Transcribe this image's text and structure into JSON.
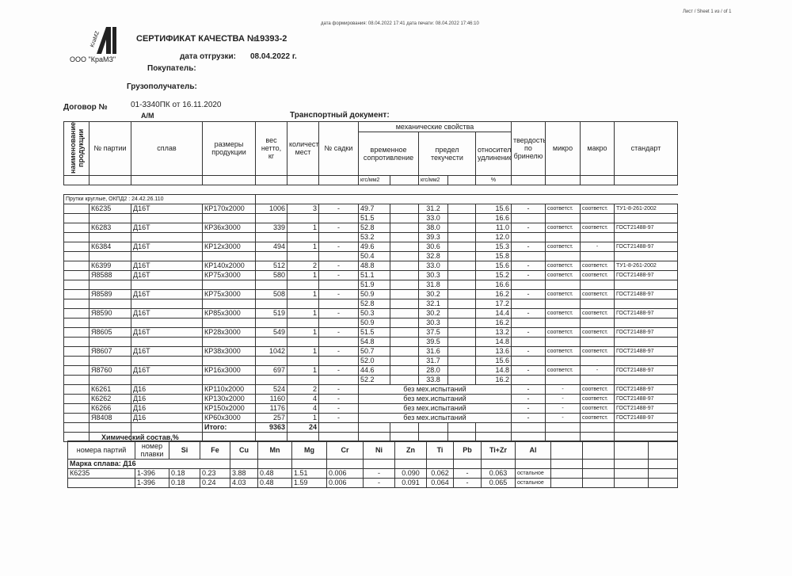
{
  "sheet": "Лист / Sheet   1 из / of  1",
  "dates": "дата формирования: 08.04.2022 17:41  дата печати: 08.04.2022 17:46:10",
  "company": "ООО \"КраМЗ\"",
  "logo_text": "KraMZ",
  "title_label": "СЕРТИФИКАТ КАЧЕСТВА №",
  "cert_no": "19393-2",
  "ship_label": "дата отгрузки:",
  "ship_date": "08.04.2022 г.",
  "buyer_label": "Покупатель:",
  "consignee_label": "Грузополучатель:",
  "contract_label": "Договор №",
  "contract_value": "01-3340ПК от 16.11.2020",
  "transport_mode": "А/М",
  "transport_doc_label": "Транспортный документ:",
  "main_table": {
    "headers": {
      "name": "наименование продукции",
      "lot": "№ партии",
      "alloy": "сплав",
      "size": "размеры продукции",
      "weight": "вес нетто, кг",
      "qty": "количество мест",
      "cage": "№ садки",
      "mech": "механические свойства",
      "tensile": "временное сопротивление",
      "yield": "предел текучести",
      "elong": "относительное удлинение",
      "hardness": "твердость по бринелю",
      "micro": "микро",
      "macro": "макро",
      "standard": "стандарт",
      "unit1": "кгс/мм2",
      "unit2": "кгс/мм2",
      "unit3": "%"
    },
    "group": "Прутки круглые,    ОКПД2 : 24.42.26.110",
    "rows": [
      {
        "lot": "К6235",
        "alloy": "Д16Т",
        "size": "КР170х2000",
        "weight": "1006",
        "qty": "3",
        "cage": "-",
        "t": [
          "49.7",
          "51.5"
        ],
        "y": [
          "31.2",
          "33.0"
        ],
        "e": [
          "15.6",
          "16.6"
        ],
        "hb": "-",
        "micro": "соответст.",
        "macro": "соответст.",
        "std": "ТУ1-8-261-2002"
      },
      {
        "lot": "К6283",
        "alloy": "Д16Т",
        "size": "КР36х3000",
        "weight": "339",
        "qty": "1",
        "cage": "-",
        "t": [
          "52.8",
          "53.2"
        ],
        "y": [
          "38.0",
          "39.3"
        ],
        "e": [
          "11.0",
          "12.0"
        ],
        "hb": "-",
        "micro": "соответст.",
        "macro": "соответст.",
        "std": "ГОСТ21488-97"
      },
      {
        "lot": "К6384",
        "alloy": "Д16Т",
        "size": "КР12х3000",
        "weight": "494",
        "qty": "1",
        "cage": "-",
        "t": [
          "49.6",
          "50.4"
        ],
        "y": [
          "30.6",
          "32.8"
        ],
        "e": [
          "15.3",
          "15.8"
        ],
        "hb": "-",
        "micro": "соответст.",
        "macro": "-",
        "std": "ГОСТ21488-97"
      },
      {
        "lot": "К6399",
        "alloy": "Д16Т",
        "size": "КР140х2000",
        "weight": "512",
        "qty": "2",
        "cage": "-",
        "t": [
          "48.8"
        ],
        "y": [
          "33.0"
        ],
        "e": [
          "15.6"
        ],
        "hb": "-",
        "micro": "соответст.",
        "macro": "соответст.",
        "std": "ТУ1-8-261-2002"
      },
      {
        "lot": "Я8588",
        "alloy": "Д16Т",
        "size": "КР75х3000",
        "weight": "580",
        "qty": "1",
        "cage": "-",
        "t": [
          "51.1",
          "51.9"
        ],
        "y": [
          "30.3",
          "31.8"
        ],
        "e": [
          "15.2",
          "16.6"
        ],
        "hb": "-",
        "micro": "соответст.",
        "macro": "соответст.",
        "std": "ГОСТ21488-97"
      },
      {
        "lot": "Я8589",
        "alloy": "Д16Т",
        "size": "КР75х3000",
        "weight": "508",
        "qty": "1",
        "cage": "-",
        "t": [
          "50.9",
          "52.8"
        ],
        "y": [
          "30.2",
          "32.1"
        ],
        "e": [
          "16.2",
          "17.2"
        ],
        "hb": "-",
        "micro": "соответст.",
        "macro": "соответст.",
        "std": "ГОСТ21488-97"
      },
      {
        "lot": "Я8590",
        "alloy": "Д16Т",
        "size": "КР85х3000",
        "weight": "519",
        "qty": "1",
        "cage": "-",
        "t": [
          "50.3",
          "50.9"
        ],
        "y": [
          "30.2",
          "30.3"
        ],
        "e": [
          "14.4",
          "16.2"
        ],
        "hb": "-",
        "micro": "соответст.",
        "macro": "соответст.",
        "std": "ГОСТ21488-97"
      },
      {
        "lot": "Я8605",
        "alloy": "Д16Т",
        "size": "КР28х3000",
        "weight": "549",
        "qty": "1",
        "cage": "-",
        "t": [
          "51.5",
          "54.8"
        ],
        "y": [
          "37.5",
          "39.5"
        ],
        "e": [
          "13.2",
          "14.8"
        ],
        "hb": "-",
        "micro": "соответст.",
        "macro": "соответст.",
        "std": "ГОСТ21488-97"
      },
      {
        "lot": "Я8607",
        "alloy": "Д16Т",
        "size": "КР38х3000",
        "weight": "1042",
        "qty": "1",
        "cage": "-",
        "t": [
          "50.7",
          "52.0"
        ],
        "y": [
          "31.6",
          "31.7"
        ],
        "e": [
          "13.6",
          "15.6"
        ],
        "hb": "-",
        "micro": "соответст.",
        "macro": "соответст.",
        "std": "ГОСТ21488-97"
      },
      {
        "lot": "Я8760",
        "alloy": "Д16Т",
        "size": "КР16х3000",
        "weight": "697",
        "qty": "1",
        "cage": "-",
        "t": [
          "44.6",
          "52.2"
        ],
        "y": [
          "28.0",
          "33.8"
        ],
        "e": [
          "14.8",
          "16.2"
        ],
        "hb": "-",
        "micro": "соответст.",
        "macro": "-",
        "std": "ГОСТ21488-97"
      },
      {
        "lot": "К6261",
        "alloy": "Д16",
        "size": "КР110х2000",
        "weight": "524",
        "qty": "2",
        "cage": "-",
        "note": "без мех.испытаний",
        "hb": "-",
        "micro": "-",
        "macro": "соответст.",
        "std": "ГОСТ21488-97"
      },
      {
        "lot": "К6262",
        "alloy": "Д16",
        "size": "КР130х2000",
        "weight": "1160",
        "qty": "4",
        "cage": "-",
        "note": "без мех.испытаний",
        "hb": "-",
        "micro": "-",
        "macro": "соответст.",
        "std": "ГОСТ21488-97"
      },
      {
        "lot": "К6266",
        "alloy": "Д16",
        "size": "КР150х2000",
        "weight": "1176",
        "qty": "4",
        "cage": "-",
        "note": "без мех.испытаний",
        "hb": "-",
        "micro": "-",
        "macro": "соответст.",
        "std": "ГОСТ21488-97"
      },
      {
        "lot": "Я8408",
        "alloy": "Д16",
        "size": "КР60х3000",
        "weight": "257",
        "qty": "1",
        "cage": "-",
        "note": "без мех.испытаний",
        "hb": "-",
        "micro": "-",
        "macro": "соответст.",
        "std": "ГОСТ21488-97"
      }
    ],
    "total_label": "Итого:",
    "total_weight": "9363",
    "total_qty": "24"
  },
  "chem": {
    "title": "Химический состав,%",
    "headers": [
      "номера партий",
      "номер плавки",
      "Si",
      "Fe",
      "Cu",
      "Mn",
      "Mg",
      "Cr",
      "Ni",
      "Zn",
      "Ti",
      "Pb",
      "Ti+Zr",
      "Al",
      "",
      "",
      "",
      ""
    ],
    "grade": "Марка сплава: Д16",
    "rows": [
      [
        "К6235",
        "1-396",
        "0.18",
        "0.23",
        "3.88",
        "0.48",
        "1.51",
        "0.006",
        "-",
        "0.090",
        "0.062",
        "-",
        "0.063",
        "остальное",
        "",
        "",
        "",
        ""
      ],
      [
        "",
        "1-396",
        "0.18",
        "0.24",
        "4.03",
        "0.48",
        "1.59",
        "0.006",
        "-",
        "0.091",
        "0.064",
        "-",
        "0.065",
        "остальное",
        "",
        "",
        "",
        ""
      ]
    ]
  }
}
